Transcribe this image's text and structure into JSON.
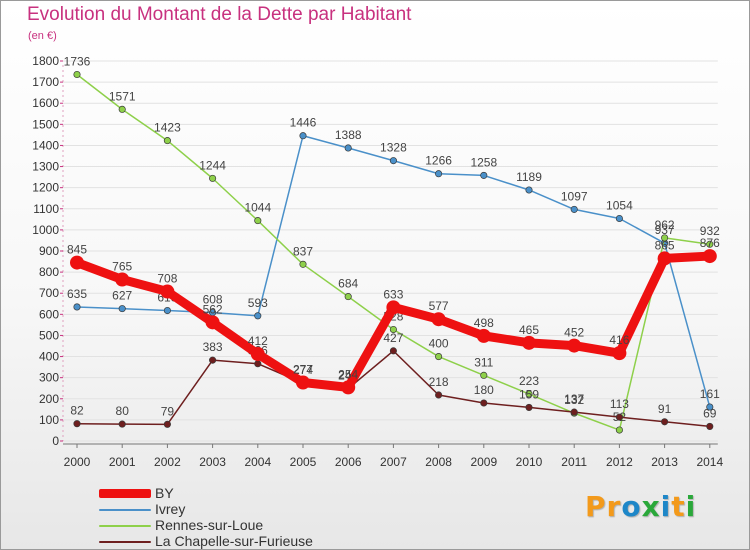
{
  "title": "Evolution du Montant de la Dette par Habitant",
  "subtitle": "(en €)",
  "brand": {
    "text": "Proxiti",
    "colors": [
      "#f39a1b",
      "#f39a1b",
      "#1e87c8",
      "#2aa83a",
      "#1e87c8",
      "#f39a1b",
      "#2aa83a"
    ]
  },
  "chart_data": {
    "type": "line",
    "x": [
      "2000",
      "2001",
      "2002",
      "2003",
      "2004",
      "2005",
      "2006",
      "2007",
      "2008",
      "2009",
      "2010",
      "2011",
      "2012",
      "2013",
      "2014"
    ],
    "ylim": [
      0,
      1800
    ],
    "yticks": [
      0,
      100,
      200,
      300,
      400,
      500,
      600,
      700,
      800,
      900,
      1000,
      1100,
      1200,
      1300,
      1400,
      1500,
      1600,
      1700,
      1800
    ],
    "grid": "horizontal",
    "legend_position": "bottom-left",
    "series": [
      {
        "name": "Ivrey",
        "color": "#4a90c9",
        "values": [
          635,
          627,
          618,
          608,
          593,
          1446,
          1388,
          1328,
          1266,
          1258,
          1189,
          1097,
          1054,
          937,
          161
        ]
      },
      {
        "name": "Rennes-sur-Loue",
        "color": "#8ed04a",
        "values": [
          1736,
          1571,
          1423,
          1244,
          1044,
          837,
          684,
          528,
          400,
          311,
          223,
          132,
          52,
          962,
          932
        ]
      },
      {
        "name": "La Chapelle-sur-Furieuse",
        "color": "#6e1f1f",
        "values": [
          82,
          80,
          79,
          383,
          366,
          274,
          248,
          427,
          218,
          180,
          159,
          137,
          113,
          91,
          69
        ]
      },
      {
        "name": "BY",
        "color": "#ee1111",
        "values": [
          845,
          765,
          708,
          562,
          412,
          277,
          254,
          633,
          577,
          498,
          465,
          452,
          416,
          865,
          876
        ]
      }
    ]
  }
}
